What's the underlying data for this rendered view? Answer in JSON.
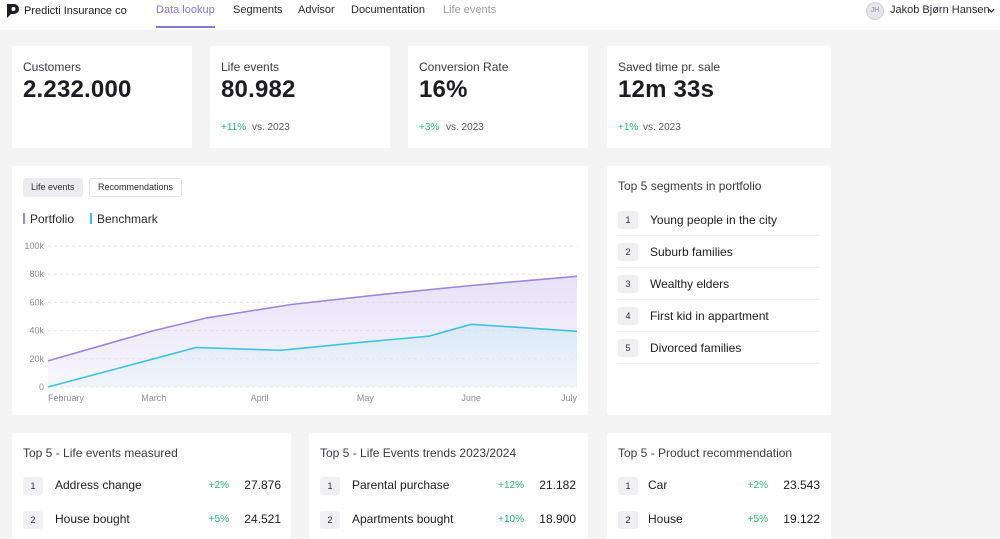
{
  "header": {
    "brand": "Predicti Insurance co",
    "nav": [
      {
        "label": "Data lookup",
        "state": "active"
      },
      {
        "label": "Segments",
        "state": "normal"
      },
      {
        "label": "Advisor",
        "state": "normal"
      },
      {
        "label": "Documentation",
        "state": "normal"
      },
      {
        "label": "Life events",
        "state": "muted"
      }
    ],
    "user": {
      "initials": "JH",
      "name": "Jakob Bjørn Hansen"
    },
    "accent_color": "#8a78d6"
  },
  "kpis": [
    {
      "title": "Customers",
      "value": "2.232.000",
      "delta": "",
      "vs": ""
    },
    {
      "title": "Life events",
      "value": "80.982",
      "delta": "+11%",
      "vs": "vs. 2023"
    },
    {
      "title": "Conversion Rate",
      "value": "16%",
      "delta": "+3%",
      "vs": "vs. 2023"
    },
    {
      "title": "Saved time pr. sale",
      "value": "12m 33s",
      "delta": "+1%",
      "vs": "vs. 2023"
    }
  ],
  "chart_tabs": [
    {
      "label": "Life events",
      "active": true
    },
    {
      "label": "Recommendations",
      "active": false
    }
  ],
  "chart_data": {
    "type": "area",
    "categories": [
      "February",
      "March",
      "April",
      "May",
      "June",
      "July"
    ],
    "y_ticks": [
      "100k",
      "80k",
      "60k",
      "40k",
      "20k",
      "0"
    ],
    "ylim": [
      0,
      100000
    ],
    "grid": true,
    "legend_position": "top-left",
    "series": [
      {
        "name": "Portfolio",
        "color": "#9a86dc",
        "points": [
          [
            0,
            18500
          ],
          [
            1,
            40000
          ],
          [
            1.5,
            49000
          ],
          [
            2.3,
            58500
          ],
          [
            3.2,
            66000
          ],
          [
            4,
            72000
          ],
          [
            5,
            78500
          ]
        ]
      },
      {
        "name": "Benchmark",
        "color": "#3ec4e0",
        "points": [
          [
            0,
            0
          ],
          [
            1,
            20000
          ],
          [
            1.4,
            28000
          ],
          [
            2.2,
            26000
          ],
          [
            3,
            32000
          ],
          [
            3.6,
            36000
          ],
          [
            4,
            44500
          ],
          [
            5,
            39500
          ]
        ]
      }
    ]
  },
  "segments": {
    "title": "Top 5 segments in portfolio",
    "items": [
      {
        "rank": "1",
        "label": "Young people in the city"
      },
      {
        "rank": "2",
        "label": "Suburb families"
      },
      {
        "rank": "3",
        "label": "Wealthy elders"
      },
      {
        "rank": "4",
        "label": "First kid in appartment"
      },
      {
        "rank": "5",
        "label": "Divorced families"
      }
    ]
  },
  "bottom_panels": [
    {
      "title": "Top 5 - Life events measured",
      "rows": [
        {
          "rank": "1",
          "label": "Address change",
          "delta": "+2%",
          "value": "27.876"
        },
        {
          "rank": "2",
          "label": "House bought",
          "delta": "+5%",
          "value": "24.521"
        }
      ]
    },
    {
      "title": "Top 5 - Life Events trends 2023/2024",
      "rows": [
        {
          "rank": "1",
          "label": "Parental purchase",
          "delta": "+12%",
          "value": "21.182"
        },
        {
          "rank": "2",
          "label": "Apartments bought",
          "delta": "+10%",
          "value": "18.900"
        }
      ]
    },
    {
      "title": "Top 5 - Product recommendation",
      "rows": [
        {
          "rank": "1",
          "label": "Car",
          "delta": "+2%",
          "value": "23.543"
        },
        {
          "rank": "2",
          "label": "House",
          "delta": "+5%",
          "value": "19.122"
        }
      ]
    }
  ]
}
